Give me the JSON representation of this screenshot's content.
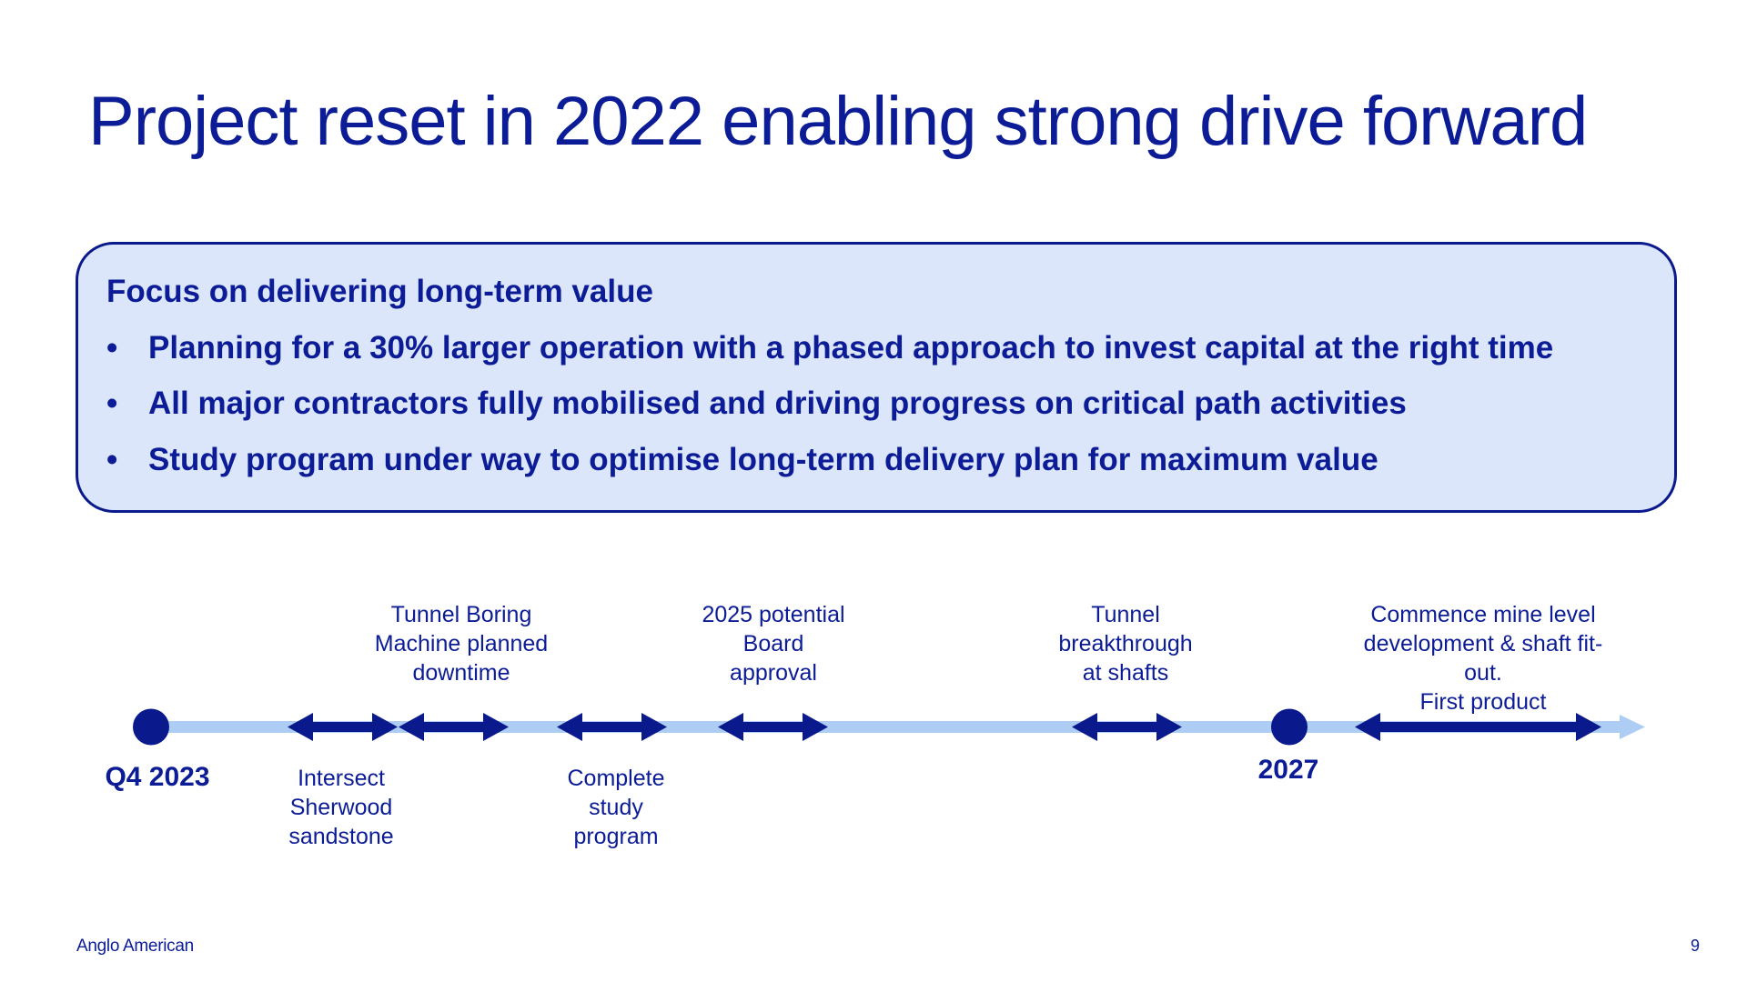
{
  "slide": {
    "title": "Project reset in 2022 enabling strong drive forward",
    "page_number": "9",
    "brand": "Anglo American"
  },
  "focus": {
    "heading": "Focus on delivering long-term value",
    "bullet_symbol": "•",
    "bullets": [
      "Planning for a 30% larger operation with a phased approach to invest capital at the right time",
      "All major contractors fully mobilised and driving progress on critical path activities",
      "Study program under way to optimise long-term delivery plan for maximum value"
    ]
  },
  "timeline": {
    "start_label": "Q4 2023",
    "end_label": "2027",
    "milestones_above": [
      "Tunnel Boring\nMachine planned\ndowntime",
      "2025 potential\nBoard\napproval",
      "Tunnel\nbreakthrough\nat shafts",
      "Commence mine level\ndevelopment & shaft fit-out.\nFirst product"
    ],
    "milestones_below": [
      "Intersect\nSherwood\nsandstone",
      "Complete\nstudy\nprogram"
    ]
  },
  "colors": {
    "navy": "#0a1a8c",
    "light_blue_line": "#aecdf5",
    "box_fill": "#dbe6fb"
  }
}
